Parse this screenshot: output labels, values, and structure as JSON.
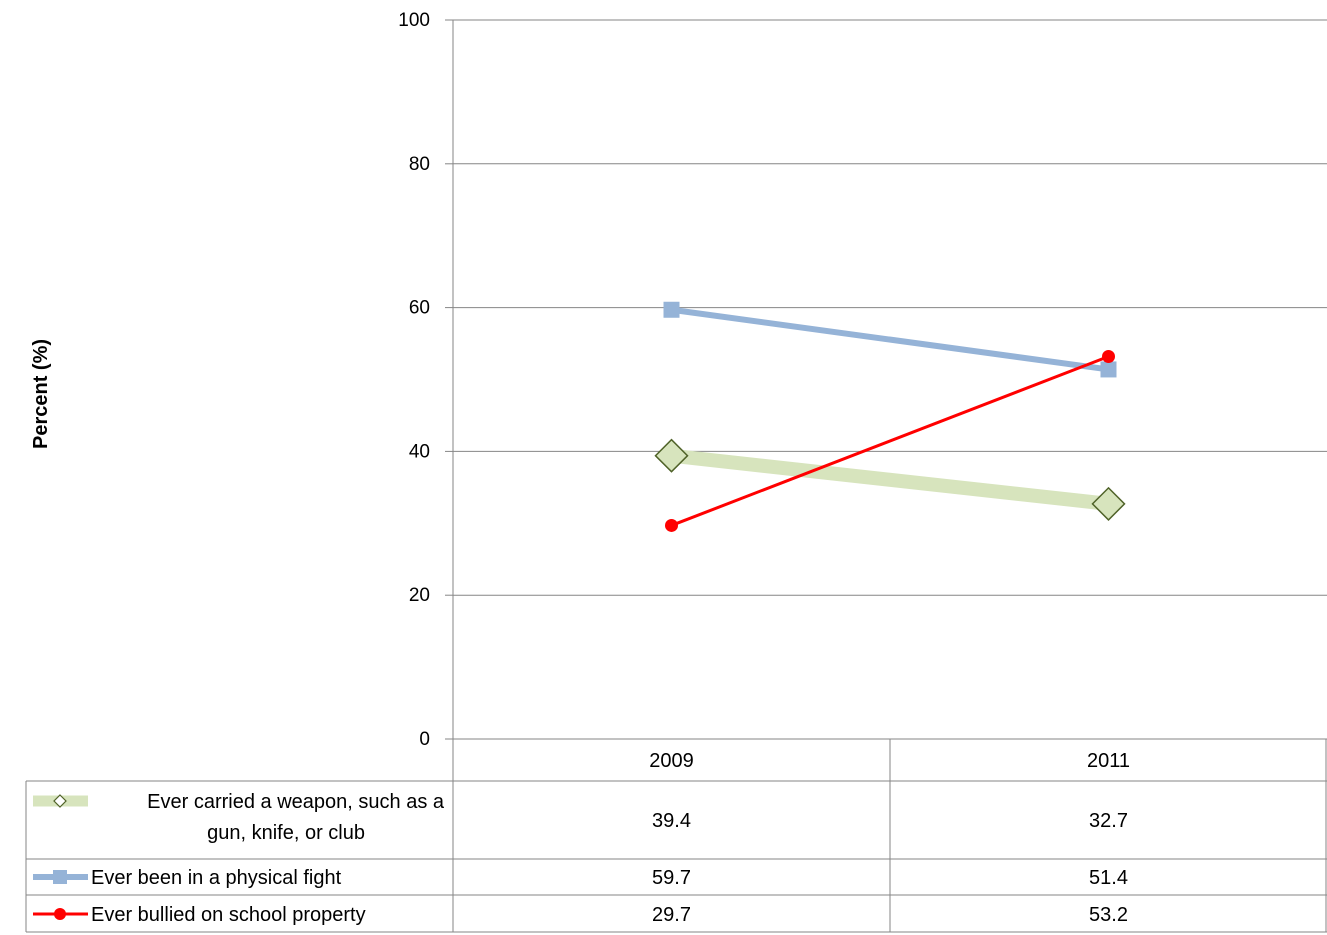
{
  "chart_data": {
    "type": "line",
    "title": "",
    "xlabel": "",
    "ylabel": "Percent (%)",
    "ylim": [
      0,
      100
    ],
    "yticks": [
      0,
      20,
      40,
      60,
      80,
      100
    ],
    "grid": true,
    "legend": "data-table",
    "categories": [
      "2009",
      "2011"
    ],
    "series": [
      {
        "name": "Ever carried a weapon, such as a gun, knife, or club",
        "name_lines": [
          "Ever carried a weapon, such as a",
          "gun, knife, or club"
        ],
        "values": [
          39.4,
          32.7
        ],
        "value_labels": [
          "39.4",
          "32.7"
        ],
        "color": "#d7e4bd",
        "marker": "diamond",
        "marker_fill": "#d7e4bd",
        "marker_stroke": "#4f6228"
      },
      {
        "name": "Ever been in a physical fight",
        "name_lines": [
          "Ever been in a physical fight"
        ],
        "values": [
          59.7,
          51.4
        ],
        "value_labels": [
          "59.7",
          "51.4"
        ],
        "color": "#95b3d7",
        "marker": "square",
        "marker_fill": "#95b3d7",
        "marker_stroke": "#95b3d7"
      },
      {
        "name": "Ever bullied on school property",
        "name_lines": [
          "Ever bullied on school property"
        ],
        "values": [
          29.7,
          53.2
        ],
        "value_labels": [
          "29.7",
          "53.2"
        ],
        "color": "#ff0000",
        "marker": "circle",
        "marker_fill": "#ff0000",
        "marker_stroke": "#ff0000"
      }
    ]
  }
}
